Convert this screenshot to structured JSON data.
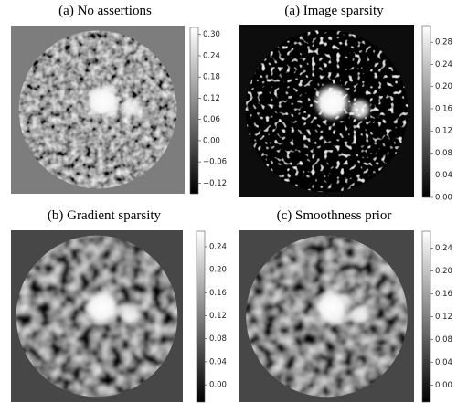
{
  "chart_data": [
    {
      "type": "heatmap",
      "title": "(a) No assertions",
      "colormap": "gray",
      "clim": [
        -0.15,
        0.32
      ],
      "colorbar_ticks": [
        {
          "value": 0.3,
          "label": "0.30"
        },
        0.24,
        0.18,
        0.12,
        0.06,
        {
          "value": 0,
          "label": "0.00"
        },
        {
          "value": -0.06,
          "label": "−0.06"
        },
        {
          "value": -0.12,
          "label": "−0.12"
        }
      ]
    },
    {
      "type": "heatmap",
      "title": "(a) Image sparsity",
      "colormap": "gray",
      "clim": [
        0,
        0.31
      ],
      "colorbar_ticks": [
        0.28,
        0.24,
        {
          "value": 0.2,
          "label": "0.20"
        },
        0.16,
        0.12,
        0.08,
        0.04,
        {
          "value": 0,
          "label": "0.00"
        }
      ]
    },
    {
      "type": "heatmap",
      "title": "(b) Gradient sparsity",
      "colormap": "gray",
      "clim": [
        -0.03,
        0.267
      ],
      "colorbar_ticks": [
        0.24,
        {
          "value": 0.2,
          "label": "0.20"
        },
        0.16,
        0.12,
        0.08,
        0.04,
        {
          "value": 0,
          "label": "0.00"
        }
      ]
    },
    {
      "type": "heatmap",
      "title": "(c) Smoothness prior",
      "colormap": "gray",
      "clim": [
        -0.03,
        0.27
      ],
      "colorbar_ticks": [
        0.24,
        {
          "value": 0.2,
          "label": "0.20"
        },
        0.16,
        0.12,
        0.08,
        0.04,
        {
          "value": 0,
          "label": "0.00"
        }
      ]
    }
  ]
}
